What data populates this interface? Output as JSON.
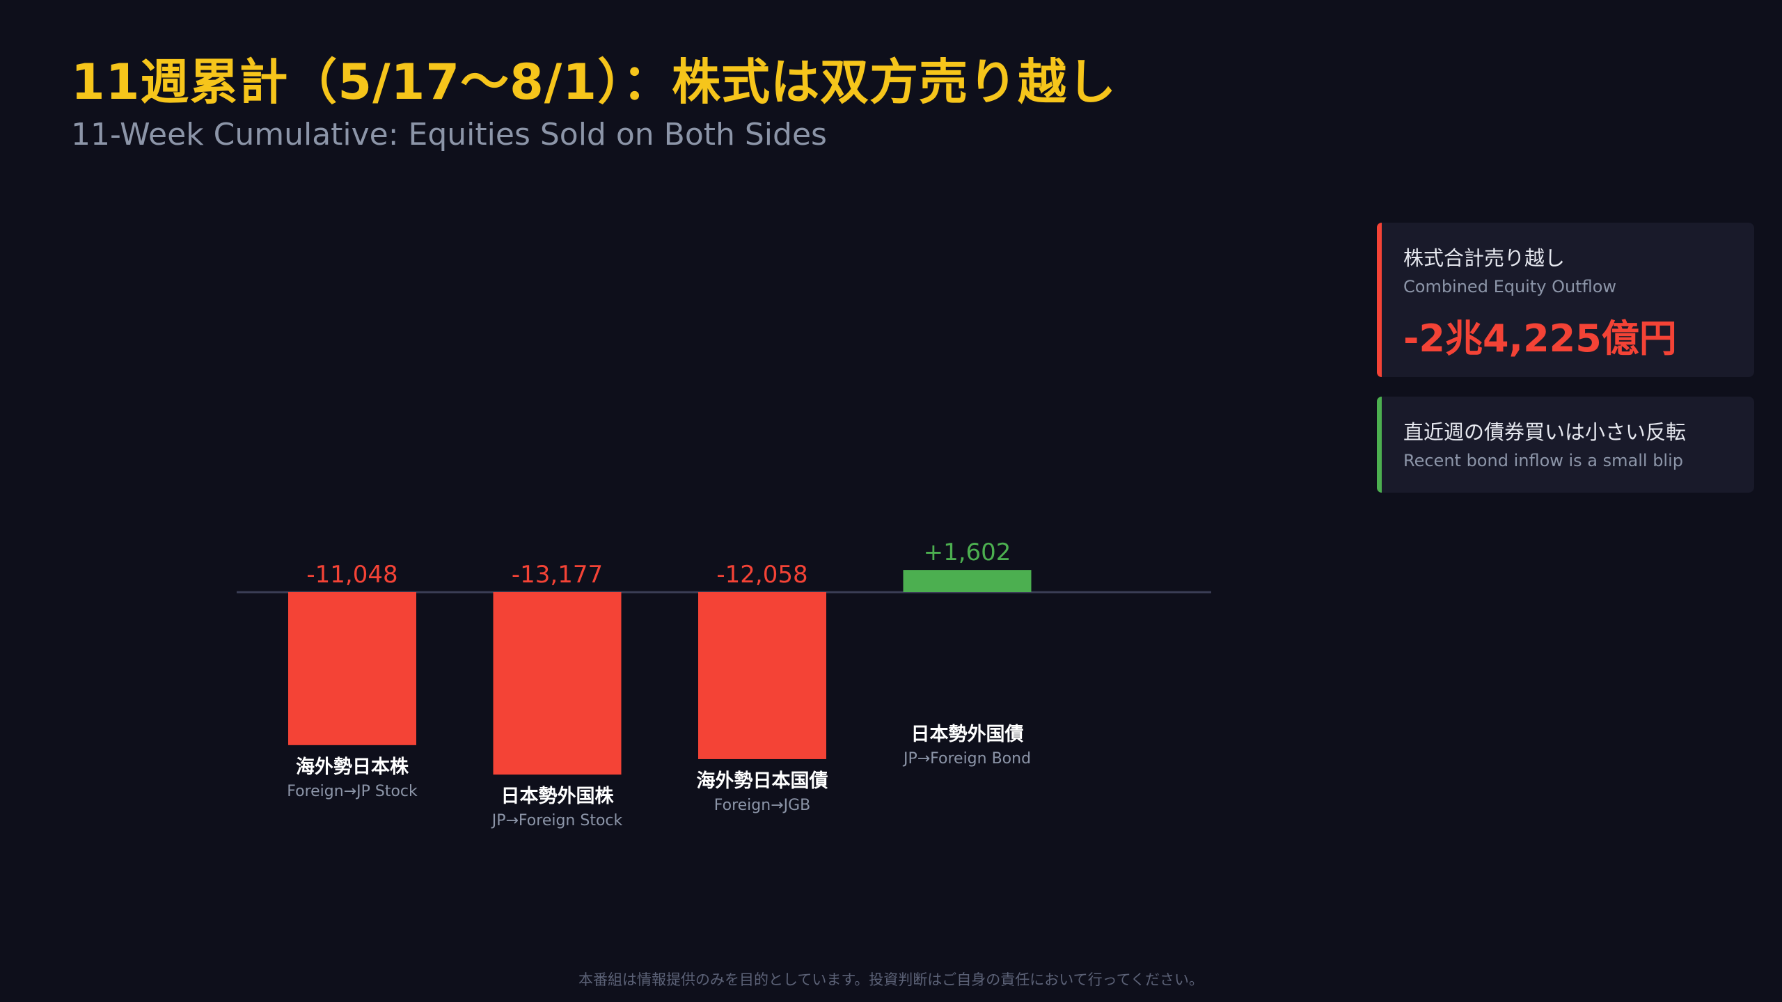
{
  "title": "11週累計（5/17〜8/1）：株式は双方売り越し",
  "subtitle": "11-Week Cumulative: Equities Sold on Both Sides",
  "chart_data": {
    "type": "bar",
    "categories": [
      "海外勢日本株",
      "日本勢外国株",
      "海外勢日本国債",
      "日本勢外国債"
    ],
    "category_sublabels": [
      "Foreign→JP Stock",
      "JP→Foreign Stock",
      "Foreign→JGB",
      "JP→Foreign Bond"
    ],
    "values": [
      -11048,
      -13177,
      -12058,
      1602
    ],
    "value_labels": [
      "-11,048",
      "-13,177",
      "-12,058",
      "+1,602"
    ],
    "colors": {
      "negative": "#f44336",
      "positive": "#4caf50"
    },
    "grid": false,
    "legend": "none"
  },
  "cards": [
    {
      "title": "株式合計売り越し",
      "subtitle": "Combined Equity Outflow",
      "value": "-2兆4,225億円",
      "accent": "#f44336"
    },
    {
      "title": "直近週の債券買いは小さい反転",
      "subtitle": "Recent bond inflow is a small blip",
      "accent": "#4caf50"
    }
  ],
  "disclaimer": "本番組は情報提供のみを目的としています。投資判断はご自身の責任において行ってください。"
}
